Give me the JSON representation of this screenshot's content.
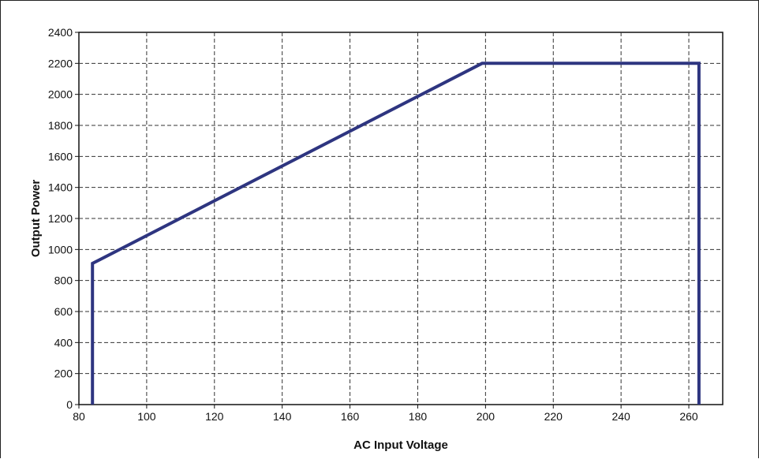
{
  "chart_data": {
    "type": "line",
    "title": "",
    "xlabel": "AC Input Voltage",
    "ylabel": "Output Power",
    "xlim": [
      80,
      270
    ],
    "ylim": [
      0,
      2400
    ],
    "x_ticks": [
      80,
      100,
      120,
      140,
      160,
      180,
      200,
      220,
      240,
      260
    ],
    "y_ticks": [
      0,
      200,
      400,
      600,
      800,
      1000,
      1200,
      1400,
      1600,
      1800,
      2000,
      2200,
      2400
    ],
    "grid": true,
    "series": [
      {
        "color": "#2e3580",
        "points": [
          [
            84,
            0
          ],
          [
            84,
            910
          ],
          [
            199,
            2200
          ],
          [
            263,
            2200
          ],
          [
            263,
            0
          ]
        ]
      }
    ]
  }
}
